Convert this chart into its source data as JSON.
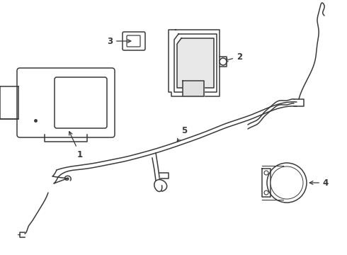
{
  "background_color": "#ffffff",
  "line_color": "#3a3a3a",
  "fig_width": 4.9,
  "fig_height": 3.6,
  "dpi": 100
}
